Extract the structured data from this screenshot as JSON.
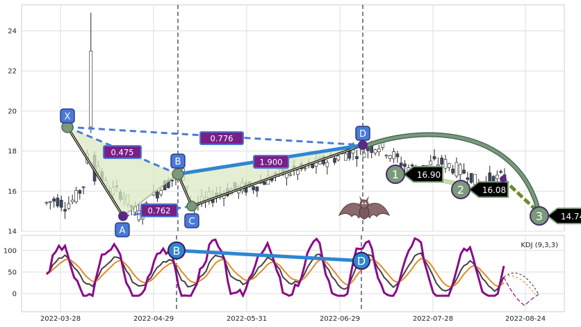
{
  "chart_data": {
    "type": "candlestick",
    "colors": {
      "up_body": "#ffffff",
      "down_body": "#3a4a66",
      "wick": "#222222",
      "harmonic_fill": "#dbe8c4",
      "blue_line": "#2e86d1",
      "dashed": "#4a7bd2",
      "marker": "#5a2a82",
      "ratio_box": "#7a1f88",
      "point_box": "#4a7ad6",
      "arrow_green": "#7a9a7a",
      "kdj_k": "#404040",
      "kdj_d": "#e08a2a",
      "kdj_j": "#8a0a8a"
    },
    "price_axis": {
      "ylim": [
        14,
        25.3
      ],
      "ticks": [
        "14",
        "16",
        "18",
        "20",
        "22",
        "24"
      ]
    },
    "x_axis": {
      "labels": [
        "2022-03-28",
        "2022-04-29",
        "2022-05-31",
        "2022-06-29",
        "2022-07-28",
        "2022-08-24"
      ]
    },
    "pattern_points": [
      {
        "label": "X",
        "price": 19.2
      },
      {
        "label": "A",
        "price": 14.75
      },
      {
        "label": "B",
        "price": 16.85
      },
      {
        "label": "C",
        "price": 15.25
      },
      {
        "label": "D",
        "price": 18.3
      }
    ],
    "ratios": [
      "0.475",
      "0.776",
      "0.762",
      "1.900"
    ],
    "targets": [
      {
        "label": "1",
        "value": "16.90"
      },
      {
        "label": "2",
        "value": "16.08"
      },
      {
        "label": "3",
        "value": "14.74"
      }
    ],
    "kdj": {
      "title": "KDJ (9,3,3)",
      "ylim": [
        -42,
        135
      ],
      "ticks": [
        "0",
        "50",
        "100"
      ],
      "points": [
        "B",
        "D"
      ]
    }
  }
}
